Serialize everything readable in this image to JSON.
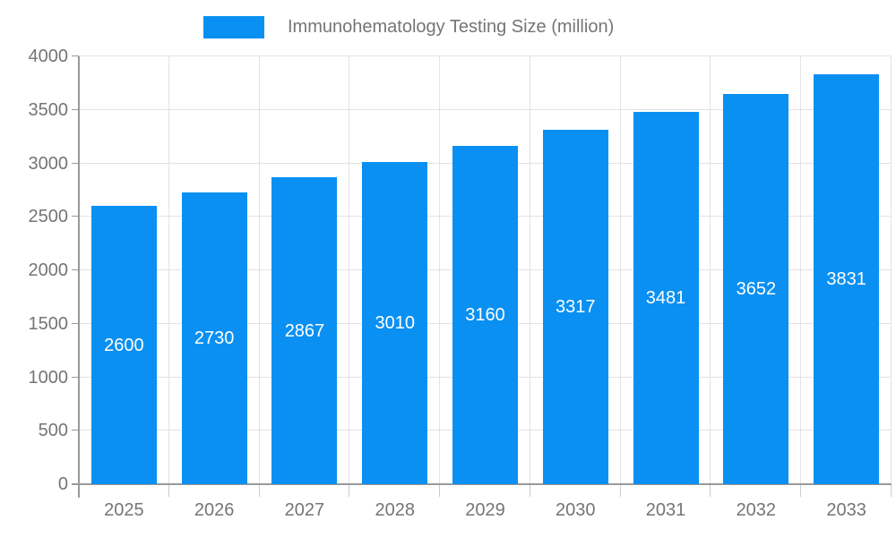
{
  "legend": {
    "label": "Immunohematology Testing Size (million)"
  },
  "colors": {
    "bar": "#0a90f2",
    "grid": "#e3e3e3",
    "axis": "#999999",
    "tick": "#cccccc",
    "axis_label": "#757575",
    "bar_label": "#ffffff",
    "background": "#ffffff"
  },
  "chart_data": {
    "type": "bar",
    "title": "",
    "categories": [
      "2025",
      "2026",
      "2027",
      "2028",
      "2029",
      "2030",
      "2031",
      "2032",
      "2033"
    ],
    "series": [
      {
        "name": "Immunohematology Testing Size (million)",
        "values": [
          2600,
          2730,
          2867,
          3010,
          3160,
          3317,
          3481,
          3652,
          3831
        ]
      }
    ],
    "ylim": [
      0,
      4000
    ],
    "yticks": [
      0,
      500,
      1000,
      1500,
      2000,
      2500,
      3000,
      3500,
      4000
    ],
    "grid": true,
    "legend_position": "top-center",
    "bar_value_labels": "inside-middle"
  }
}
